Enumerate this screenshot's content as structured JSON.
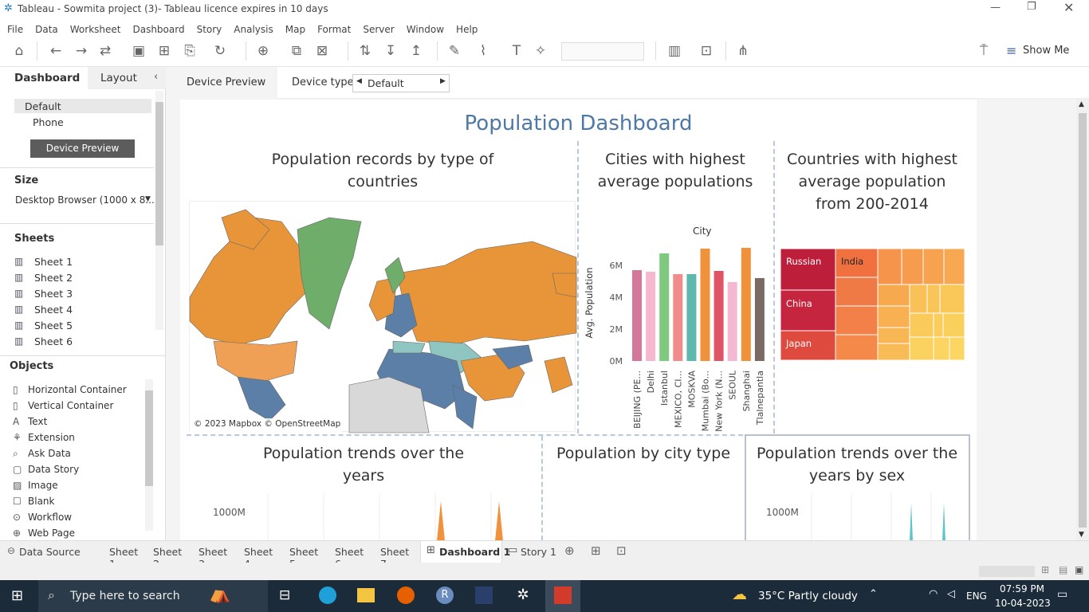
{
  "window": {
    "title": "Tableau - Sowmita project (3)- Tableau licence expires in 10 days"
  },
  "menu": [
    "File",
    "Data",
    "Worksheet",
    "Dashboard",
    "Story",
    "Analysis",
    "Map",
    "Format",
    "Server",
    "Window",
    "Help"
  ],
  "toolbar": {
    "show_me": "Show Me"
  },
  "left_panel": {
    "tab_dashboard": "Dashboard",
    "tab_layout": "Layout",
    "device_default": "Default",
    "device_phone": "Phone",
    "device_preview_button": "Device Preview",
    "size_heading": "Size",
    "size_value": "Desktop Browser (1000 x 8...",
    "sheets_heading": "Sheets",
    "sheets": [
      "Sheet 1",
      "Sheet 2",
      "Sheet 3",
      "Sheet 4",
      "Sheet 5",
      "Sheet 6"
    ],
    "objects_heading": "Objects",
    "objects": [
      "Horizontal Container",
      "Vertical Container",
      "Text",
      "Extension",
      "Ask Data",
      "Data Story",
      "Image",
      "Blank",
      "Workflow",
      "Web Page"
    ]
  },
  "device_bar": {
    "preview_label": "Device Preview",
    "device_type_label": "Device type",
    "device_type_value": "Default"
  },
  "dashboard": {
    "title": "Population Dashboard",
    "map": {
      "title": "Population records by type of countries",
      "attribution": "© 2023 Mapbox © OpenStreetMap"
    },
    "cities_chart": {
      "title": "Cities with highest average populations"
    },
    "treemap": {
      "title": "Countries with highest average population from 200-2014",
      "labels": [
        "Russian",
        "India",
        "China",
        "Japan"
      ]
    },
    "trends": {
      "title": "Population trends over the years",
      "y_tick": "1000M"
    },
    "city_type": {
      "title": "Population by city type"
    },
    "trends_sex": {
      "title": "Population trends over the years by sex",
      "y_tick": "1000M"
    }
  },
  "chart_data": {
    "type": "bar",
    "title": "Cities with highest average populations",
    "xlabel": "City",
    "ylabel": "Avg. Population",
    "categories": [
      "BEIJING (PE...",
      "Delhi",
      "Istanbul",
      "MEXICO, CI...",
      "MOSKVA",
      "Mumbai (Bo...",
      "New York (N...",
      "SEOUL",
      "Shanghai",
      "Tlalnepantla"
    ],
    "values": [
      5.7,
      5.6,
      6.75,
      5.45,
      5.45,
      7.05,
      5.65,
      4.95,
      7.1,
      5.2
    ],
    "colors": [
      "#d4779a",
      "#f6b8cf",
      "#7fc97f",
      "#f08c8c",
      "#5fb8ad",
      "#f0913c",
      "#e05565",
      "#f5b8d2",
      "#f0913c",
      "#7b6a64"
    ],
    "y_ticks": [
      "0M",
      "2M",
      "4M",
      "6M"
    ],
    "ylim": [
      0,
      8
    ]
  },
  "bottom_tabs": {
    "data_source": "Data Source",
    "sheets": [
      "Sheet 1",
      "Sheet 2",
      "Sheet 3",
      "Sheet 4",
      "Sheet 5",
      "Sheet 6",
      "Sheet 7"
    ],
    "active": "Dashboard 1",
    "story": "Story 1"
  },
  "taskbar": {
    "search_placeholder": "Type here to search",
    "weather": "35°C  Partly cloudy",
    "lang": "ENG",
    "time": "07:59 PM",
    "date": "10-04-2023"
  }
}
